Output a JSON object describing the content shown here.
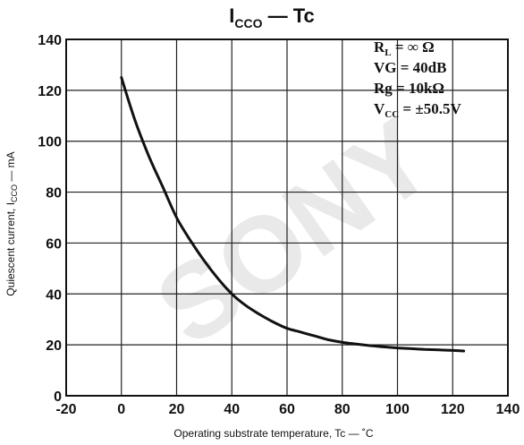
{
  "chart_data": {
    "type": "line",
    "title": {
      "main": "I",
      "subscript": "CCO",
      "suffix": " — Tc"
    },
    "xlabel": "Operating substrate temperature, Tc — ˚C",
    "ylabel": "Quiescent current, I",
    "ylabel_subscript": "CCO",
    "ylabel_suffix": " — mA",
    "xlim": [
      -20,
      140
    ],
    "ylim": [
      0,
      140
    ],
    "x_ticks": [
      "-20",
      "0",
      "20",
      "40",
      "60",
      "80",
      "100",
      "120",
      "140"
    ],
    "y_ticks": [
      "0",
      "20",
      "40",
      "60",
      "80",
      "100",
      "120",
      "140"
    ],
    "grid": true,
    "annotations": [
      {
        "main": "R",
        "sub": "L",
        "rest": " = ∞ Ω"
      },
      {
        "main": "VG = 40dB",
        "sub": "",
        "rest": ""
      },
      {
        "main": "Rg = 10kΩ",
        "sub": "",
        "rest": ""
      },
      {
        "main": "V",
        "sub": "CC",
        "rest": " = ±50.5V"
      }
    ],
    "series": [
      {
        "x": [
          0,
          5,
          10,
          15,
          20,
          25,
          30,
          35,
          40,
          45,
          50,
          55,
          60,
          65,
          70,
          75,
          80,
          85,
          90,
          95,
          100,
          105,
          110,
          115,
          120,
          124
        ],
        "values": [
          125,
          108,
          94,
          82,
          70,
          61,
          53,
          46,
          40,
          35.5,
          32,
          29,
          26.5,
          25,
          23.5,
          22,
          21,
          20.3,
          19.7,
          19.2,
          18.8,
          18.5,
          18.2,
          18,
          17.8,
          17.6
        ]
      }
    ],
    "colors": {
      "line": "#111111",
      "grid": "#222222",
      "background": "#ffffff"
    }
  }
}
